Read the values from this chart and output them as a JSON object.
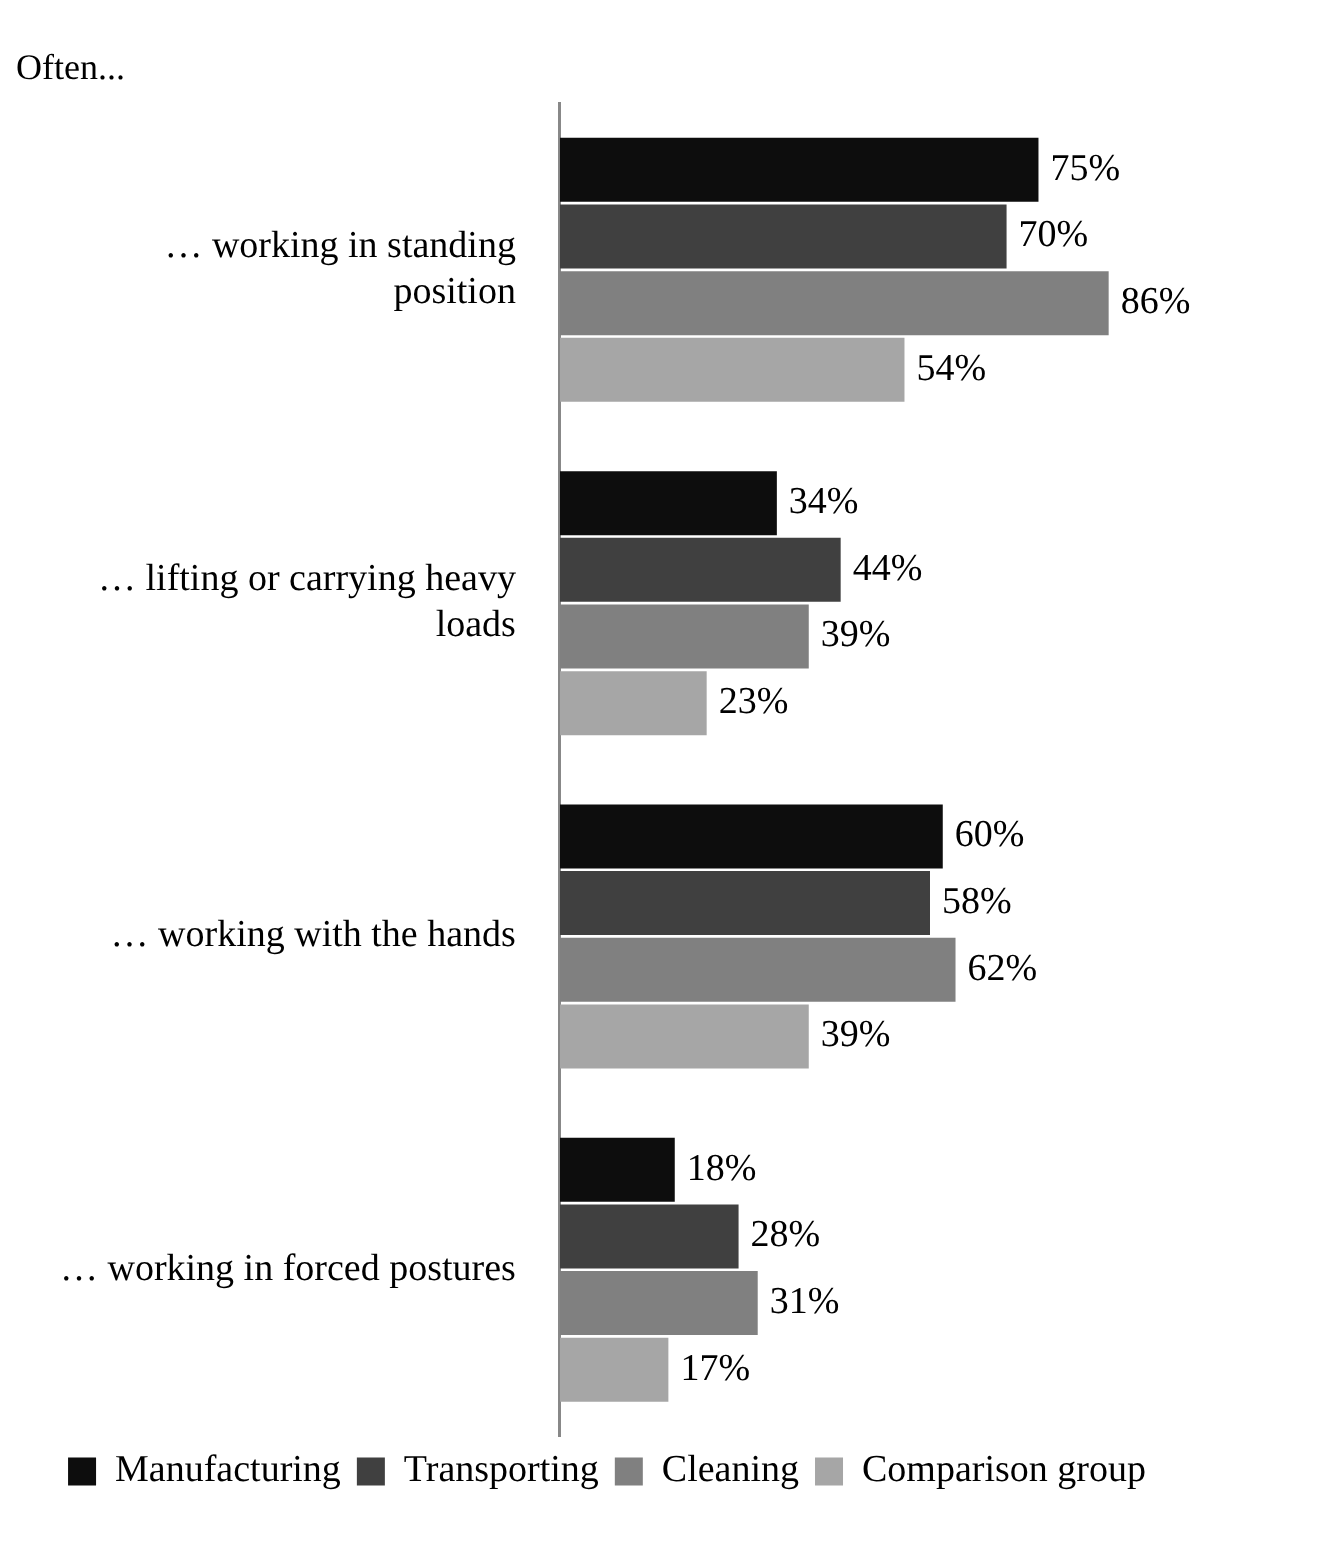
{
  "chart_data": {
    "type": "bar",
    "orientation": "horizontal",
    "title": "Often...",
    "categories": [
      "… working in standing position",
      "… lifting or carrying heavy loads",
      "… working with the hands",
      "… working in forced postures"
    ],
    "series": [
      {
        "name": "Manufacturing",
        "color": "#0d0d0d",
        "values": [
          75,
          34,
          60,
          18
        ],
        "value_labels": [
          "75%",
          "34%",
          "60%",
          "18%"
        ]
      },
      {
        "name": "Transporting",
        "color": "#404040",
        "values": [
          70,
          44,
          58,
          28
        ],
        "value_labels": [
          "70%",
          "44%",
          "58%",
          "28%"
        ]
      },
      {
        "name": "Cleaning",
        "color": "#808080",
        "values": [
          86,
          39,
          62,
          31
        ],
        "value_labels": [
          "86%",
          "39%",
          "62%",
          "31%"
        ]
      },
      {
        "name": "Comparison group",
        "color": "#a6a6a6",
        "values": [
          54,
          23,
          39,
          17
        ],
        "value_labels": [
          "54%",
          "23%",
          "39%",
          "17%"
        ]
      }
    ],
    "tick_labels": "y",
    "grid": false,
    "legend": "bottom"
  }
}
